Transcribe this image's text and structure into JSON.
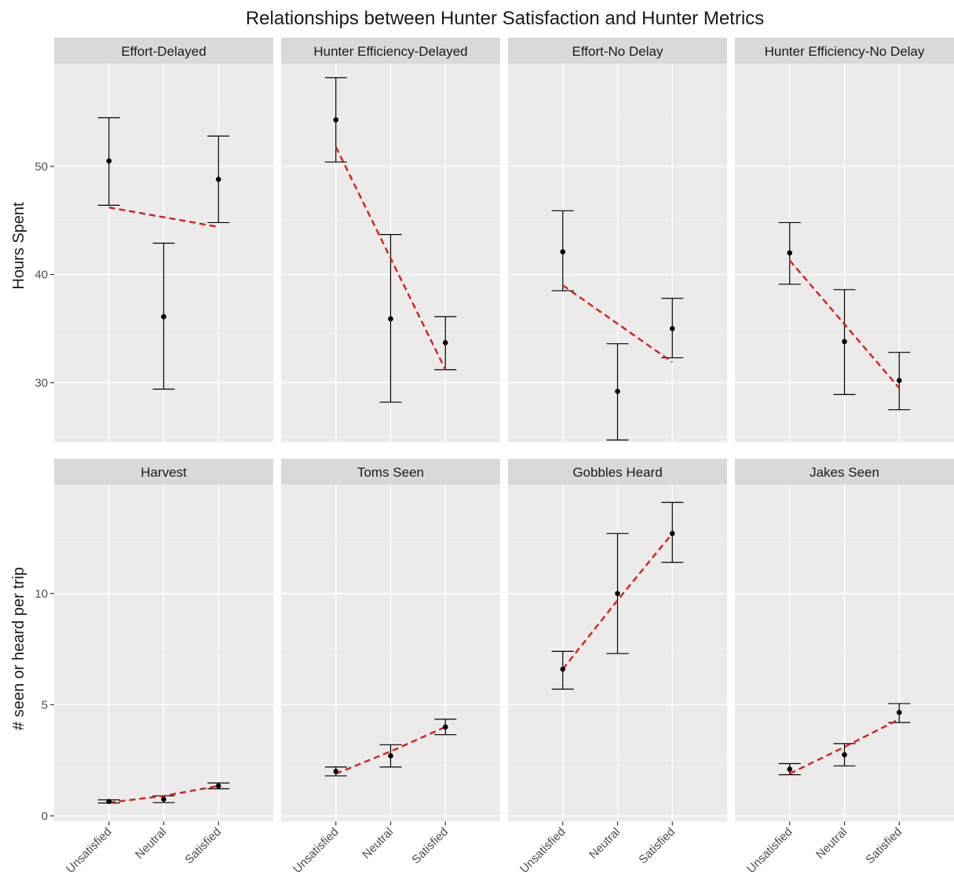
{
  "chart_data": {
    "type": "scatter",
    "title": "Relationships between Hunter Satisfaction and Hunter Metrics",
    "categories": [
      "Unsatisfied",
      "Neutral",
      "Satisfied"
    ],
    "rows": [
      {
        "ylabel": "Hours Spent",
        "ylim": [
          24.5,
          59.5
        ],
        "yticks": [
          30,
          40,
          50
        ],
        "panels": [
          {
            "label": "Effort-Delayed",
            "means": [
              50.5,
              36.1,
              48.8
            ],
            "lower": [
              46.4,
              29.4,
              44.8
            ],
            "upper": [
              54.5,
              42.9,
              52.8
            ],
            "trend": [
              46.2,
              44.4
            ]
          },
          {
            "label": "Hunter Efficiency-Delayed",
            "means": [
              54.3,
              35.9,
              33.7
            ],
            "lower": [
              50.4,
              28.2,
              31.2
            ],
            "upper": [
              58.2,
              43.7,
              36.1
            ],
            "trend": [
              51.8,
              31.2
            ]
          },
          {
            "label": "Effort-No Delay",
            "means": [
              42.1,
              29.2,
              35.0
            ],
            "lower": [
              38.5,
              24.7,
              32.3
            ],
            "upper": [
              45.9,
              33.6,
              37.8
            ],
            "trend": [
              39.0,
              31.9
            ]
          },
          {
            "label": "Hunter Efficiency-No Delay",
            "means": [
              42.0,
              33.8,
              30.2
            ],
            "lower": [
              39.1,
              28.9,
              27.5
            ],
            "upper": [
              44.8,
              38.6,
              32.8
            ],
            "trend": [
              41.3,
              29.5
            ]
          }
        ]
      },
      {
        "ylabel": "# seen or heard per trip",
        "ylim": [
          -0.25,
          14.9
        ],
        "yticks": [
          0,
          5,
          10
        ],
        "panels": [
          {
            "label": "Harvest",
            "means": [
              0.65,
              0.75,
              1.35
            ],
            "lower": [
              0.58,
              0.6,
              1.22
            ],
            "upper": [
              0.72,
              0.9,
              1.48
            ],
            "trend": [
              0.6,
              0.9,
              1.35
            ]
          },
          {
            "label": "Toms Seen",
            "means": [
              2.0,
              2.7,
              4.0
            ],
            "lower": [
              1.8,
              2.2,
              3.65
            ],
            "upper": [
              2.2,
              3.2,
              4.35
            ],
            "trend": [
              1.9,
              2.9,
              4.0
            ]
          },
          {
            "label": "Gobbles Heard",
            "means": [
              6.6,
              10.0,
              12.7
            ],
            "lower": [
              5.7,
              7.3,
              11.4
            ],
            "upper": [
              7.4,
              12.7,
              14.1
            ],
            "trend": [
              6.6,
              9.7,
              12.7
            ]
          },
          {
            "label": "Jakes Seen",
            "means": [
              2.1,
              2.75,
              4.65
            ],
            "lower": [
              1.85,
              2.25,
              4.2
            ],
            "upper": [
              2.35,
              3.25,
              5.05
            ],
            "trend": [
              1.9,
              3.1,
              4.35
            ]
          }
        ]
      }
    ],
    "colors": {
      "panel_bg": "#ebebeb",
      "strip_bg": "#d9d9d9",
      "grid_major": "#ffffff",
      "grid_minor": "#f5f5f5",
      "point": "#000000",
      "errorbar": "#000000",
      "trend": "#dd1c1c"
    }
  }
}
